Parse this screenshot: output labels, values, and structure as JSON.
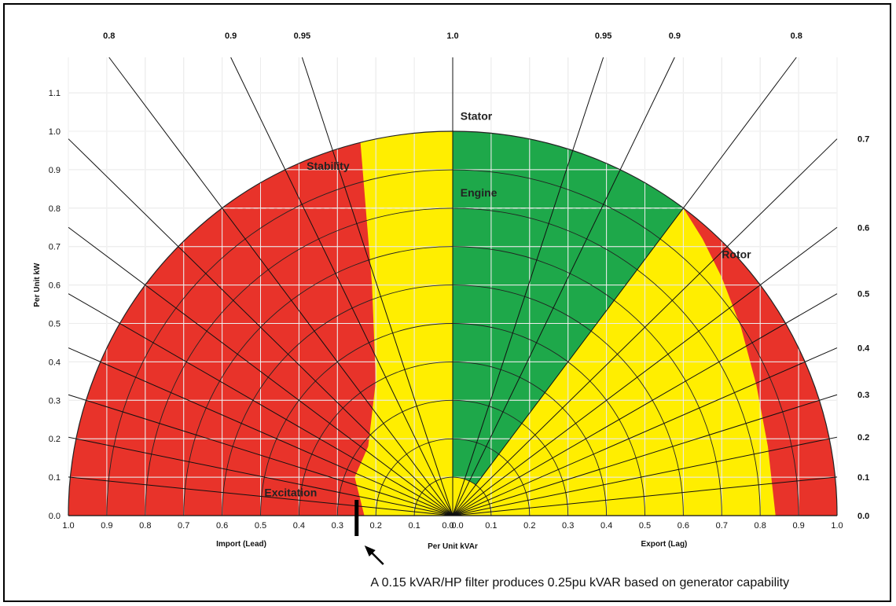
{
  "chart_data": {
    "type": "polar-capability",
    "title": "",
    "xlabel": "Per Unit kVAr",
    "ylabel": "Per Unit kW",
    "xlabel_left": "Import (Lead)",
    "xlabel_right": "Export (Lag)",
    "xlim": [
      -1.0,
      1.0
    ],
    "ylim": [
      0.0,
      1.2
    ],
    "x_ticks": [
      "1.0",
      "0.9",
      "0.8",
      "0.7",
      "0.6",
      "0.5",
      "0.4",
      "0.3",
      "0.2",
      "0.1",
      "0.0",
      "0.0",
      "0.1",
      "0.2",
      "0.3",
      "0.4",
      "0.5",
      "0.6",
      "0.7",
      "0.8",
      "0.9",
      "1.0"
    ],
    "y_ticks": [
      "0.0",
      "0.1",
      "0.2",
      "0.3",
      "0.4",
      "0.5",
      "0.6",
      "0.7",
      "0.8",
      "0.9",
      "1.0",
      "1.1"
    ],
    "pf_top_labels": [
      "0.8",
      "0.9",
      "0.95",
      "1.0",
      "0.95",
      "0.9",
      "0.8"
    ],
    "pf_top_values": [
      -0.8,
      -0.9,
      -0.95,
      1.0,
      0.95,
      0.9,
      0.8
    ],
    "pf_right_labels": [
      "0.7",
      "0.6",
      "0.5",
      "0.4",
      "0.3",
      "0.2",
      "0.1",
      "0.0"
    ],
    "pf_right_values": [
      0.7,
      0.6,
      0.5,
      0.4,
      0.3,
      0.2,
      0.1,
      0.0
    ],
    "pf_left_lines": [
      0.7,
      0.6,
      0.5,
      0.4,
      0.3,
      0.2,
      0.1
    ],
    "grid": true,
    "regions": [
      {
        "name": "Stator",
        "label": "Stator",
        "color": "#e8332a"
      },
      {
        "name": "Stability",
        "label": "Stability",
        "color": "#e8332a"
      },
      {
        "name": "Engine",
        "label": "Engine",
        "color": "#1ea84a"
      },
      {
        "name": "Rotor",
        "label": "Rotor",
        "color": "#e8332a"
      },
      {
        "name": "Excitation",
        "label": "Excitation",
        "color": "#e8332a"
      },
      {
        "name": "Capability",
        "label": "",
        "color": "#ffee00"
      }
    ],
    "engine_limit_kw": 0.8,
    "annotation": {
      "text": "A 0.15 kVAR/HP filter produces 0.25pu kVAR based on generator capability",
      "marker_kvar": -0.25
    }
  }
}
